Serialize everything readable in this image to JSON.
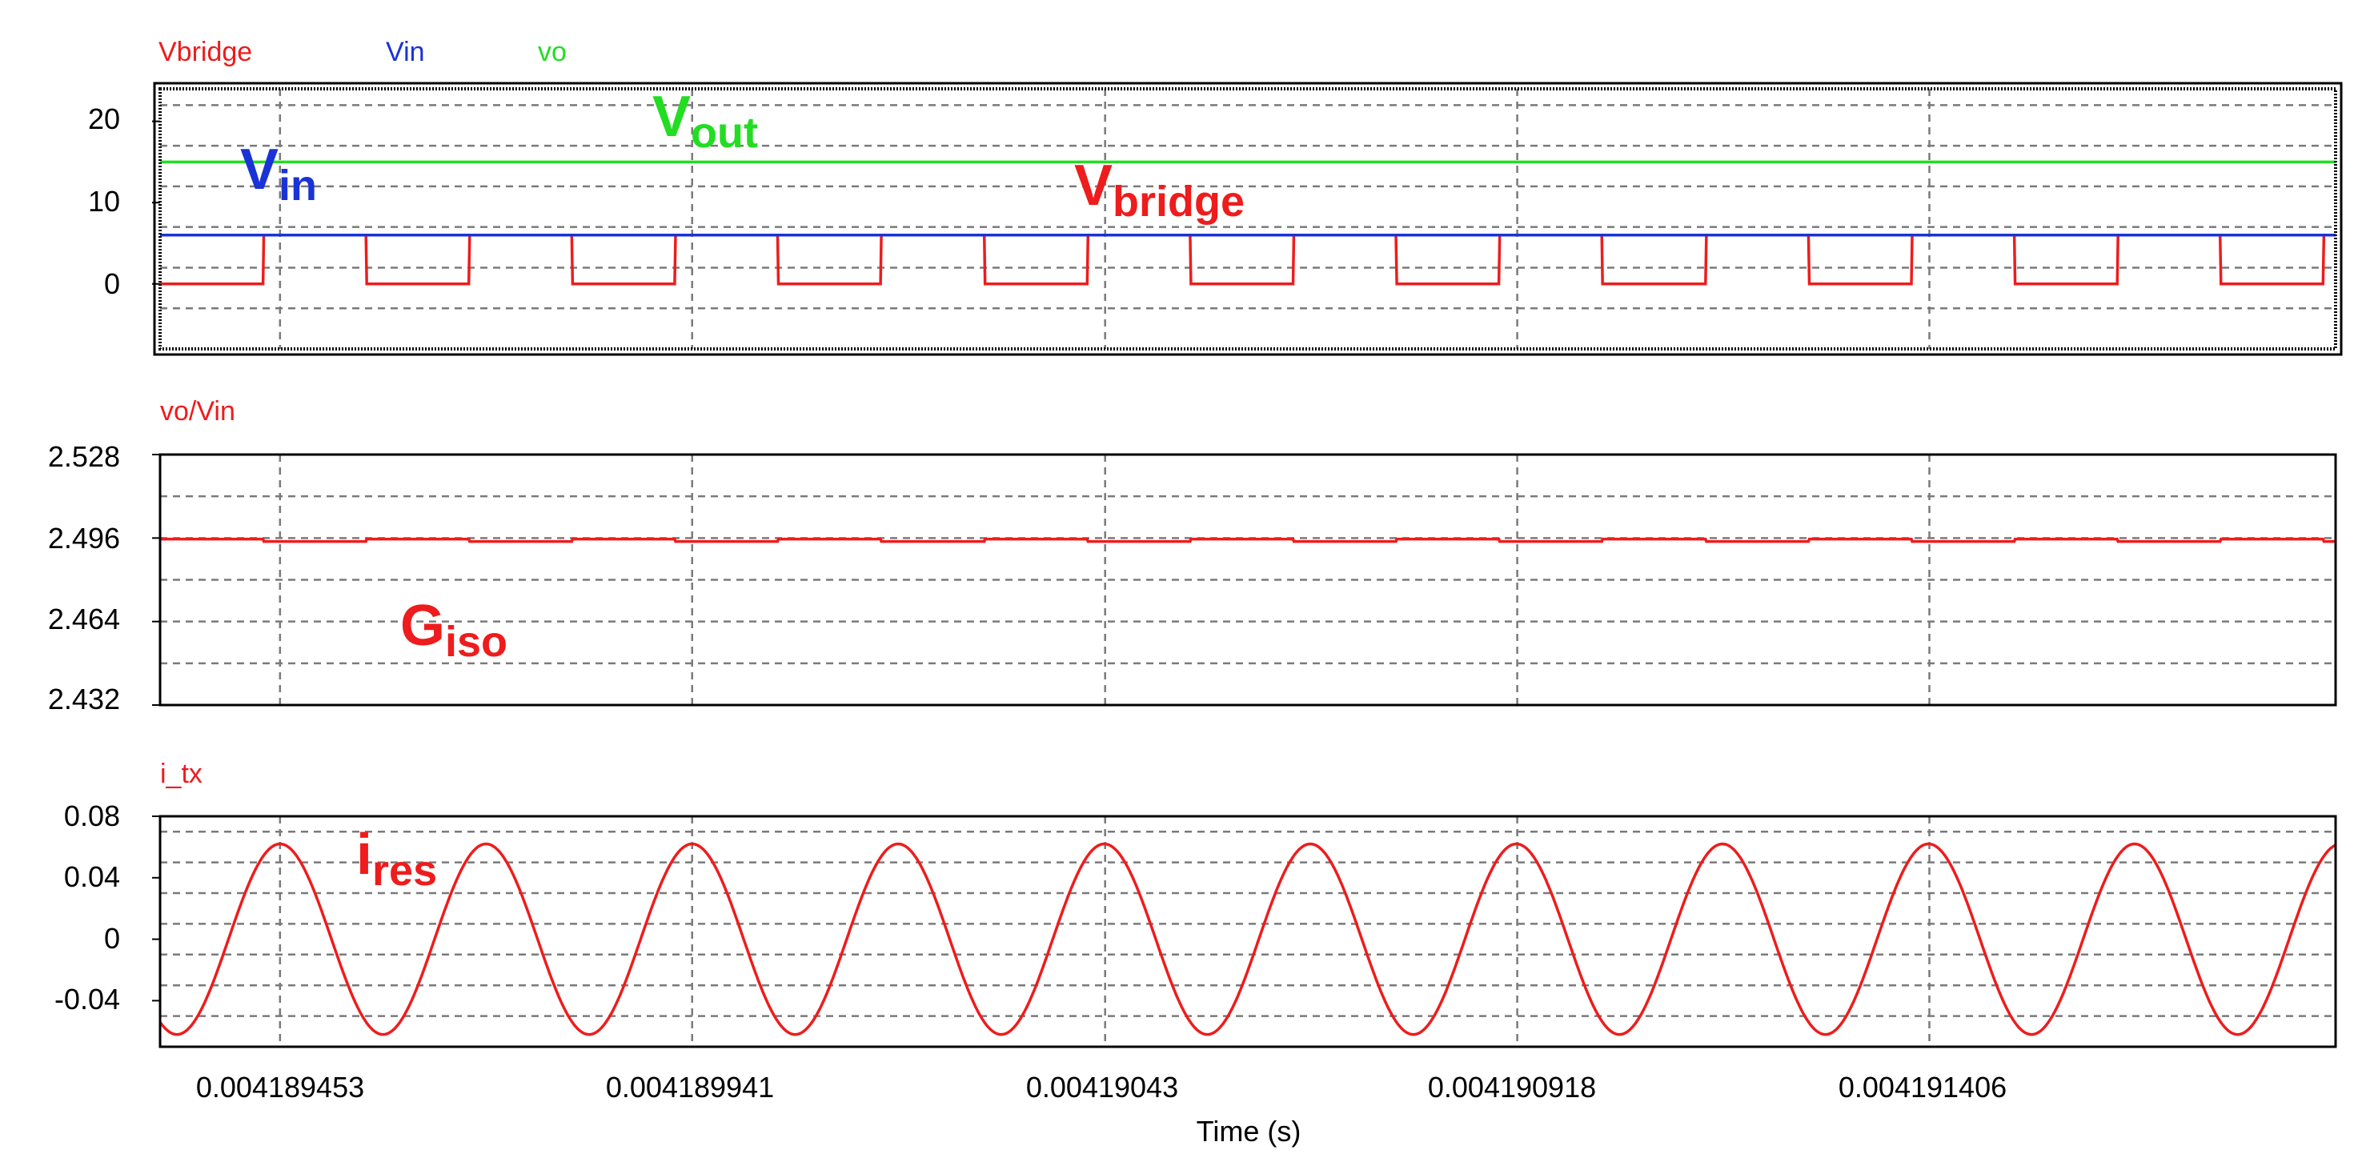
{
  "colors": {
    "red": "#ee1c1c",
    "blue": "#1a33d6",
    "green": "#22dd22",
    "grid": "#7a7a7a",
    "frame": "#000000",
    "background": "#ffffff"
  },
  "x_axis": {
    "label": "Time (s)",
    "ticks": [
      0.004189453,
      0.004189941,
      0.00419043,
      0.004190918,
      0.004191406
    ],
    "tick_labels": [
      "0.004189453",
      "0.004189941",
      "0.00419043",
      "0.004190918",
      "0.004191406"
    ],
    "range": [
      0.004189311,
      0.004191887
    ]
  },
  "chart_data": [
    {
      "type": "line",
      "legend": [
        "Vbridge",
        "Vin",
        "vo"
      ],
      "legend_colors": [
        "#ee1c1c",
        "#1a33d6",
        "#22dd22"
      ],
      "ylim": [
        -8,
        24
      ],
      "yticks": [
        0,
        10,
        20
      ],
      "ytick_labels": [
        "0",
        "10",
        "20"
      ],
      "grid": true,
      "series": [
        {
          "name": "Vbridge",
          "color": "#ee1c1c",
          "kind": "square",
          "low": 0,
          "high": 6,
          "period": 2.44e-07,
          "phase_high_start": 1.22e-07,
          "duty": 0.5
        },
        {
          "name": "Vin",
          "color": "#1a33d6",
          "kind": "constant",
          "value": 6
        },
        {
          "name": "vo",
          "color": "#22dd22",
          "kind": "constant",
          "value": 15
        }
      ],
      "annotations": [
        {
          "main": "V",
          "sub": "out",
          "color": "#22dd22"
        },
        {
          "main": "V",
          "sub": "in",
          "color": "#1a33d6"
        },
        {
          "main": "V",
          "sub": "bridge",
          "color": "#ee1c1c"
        }
      ]
    },
    {
      "type": "line",
      "legend": [
        "vo/Vin"
      ],
      "legend_colors": [
        "#ee1c1c"
      ],
      "ylim": [
        2.432,
        2.528
      ],
      "yticks": [
        2.432,
        2.464,
        2.496,
        2.528
      ],
      "ytick_labels": [
        "2.432",
        "2.464",
        "2.496",
        "2.528"
      ],
      "grid": true,
      "series": [
        {
          "name": "vo/Vin",
          "color": "#ee1c1c",
          "kind": "ripple",
          "mean": 2.495,
          "ripple": 0.0006,
          "period": 2.44e-07
        }
      ],
      "annotations": [
        {
          "main": "G",
          "sub": "iso",
          "color": "#ee1c1c"
        }
      ]
    },
    {
      "type": "line",
      "legend": [
        "i_tx"
      ],
      "legend_colors": [
        "#ee1c1c"
      ],
      "ylim": [
        -0.07,
        0.08
      ],
      "yticks": [
        -0.04,
        0,
        0.04,
        0.08
      ],
      "ytick_labels": [
        "-0.04",
        "0",
        "0.04",
        "0.08"
      ],
      "grid": true,
      "series": [
        {
          "name": "i_tx",
          "color": "#ee1c1c",
          "kind": "sine",
          "amplitude": 0.062,
          "offset": 0.0,
          "period": 2.44e-07,
          "peak_time": 0.004189453
        }
      ],
      "annotations": [
        {
          "main": "i",
          "sub": "res",
          "color": "#ee1c1c"
        }
      ]
    }
  ]
}
